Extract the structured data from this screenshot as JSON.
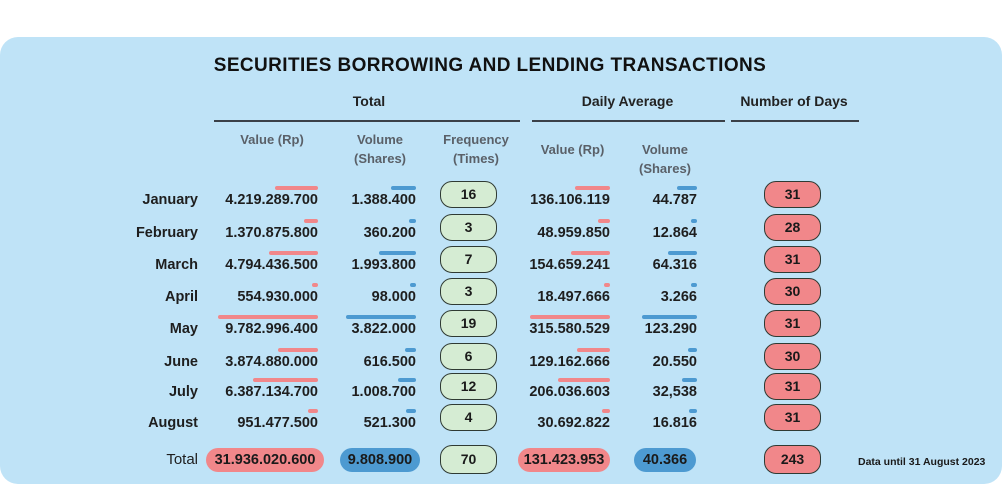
{
  "title": "SECURITIES BORROWING AND LENDING TRANSACTIONS",
  "groups": {
    "total": "Total",
    "daily": "Daily Average",
    "days": "Number of Days"
  },
  "columns": {
    "value_rp_1": "Value (Rp)",
    "volume_1": "Volume",
    "shares_1": "(Shares)",
    "frequency": "Frequency",
    "times": "(Times)",
    "value_rp_2": "Value (Rp)",
    "volume_2": "Volume",
    "shares_2": "(Shares)"
  },
  "colors": {
    "red": "#f1878a",
    "blue": "#4d9ad1",
    "green": "#d5ecd3",
    "panel": "#bfe3f7"
  },
  "chart_data": {
    "type": "table",
    "title": "SECURITIES BORROWING AND LENDING TRANSACTIONS",
    "months": [
      "January",
      "February",
      "March",
      "April",
      "May",
      "June",
      "July",
      "August"
    ],
    "total_value": [
      "4.219.289.700",
      "1.370.875.800",
      "4.794.436.500",
      "554.930.000",
      "9.782.996.400",
      "3.874.880.000",
      "6.387.134.700",
      "951.477.500"
    ],
    "total_volume": [
      "1.388.400",
      "360.200",
      "1.993.800",
      "98.000",
      "3.822.000",
      "616.500",
      "1.008.700",
      "521.300"
    ],
    "frequency": [
      "16",
      "3",
      "7",
      "3",
      "19",
      "6",
      "12",
      "4"
    ],
    "daily_value": [
      "136.106.119",
      "48.959.850",
      "154.659.241",
      "18.497.666",
      "315.580.529",
      "129.162.666",
      "206.036.603",
      "30.692.822"
    ],
    "daily_volume": [
      "44.787",
      "12.864",
      "64.316",
      "3.266",
      "123.290",
      "20.550",
      "32,538",
      "16.816"
    ],
    "days": [
      "31",
      "28",
      "31",
      "30",
      "31",
      "30",
      "31",
      "31"
    ],
    "total_value_num": [
      4219289700,
      1370875800,
      4794436500,
      554930000,
      9782996400,
      3874880000,
      6387134700,
      951477500
    ],
    "total_volume_num": [
      1388400,
      360200,
      1993800,
      98000,
      3822000,
      616500,
      1008700,
      521300
    ],
    "daily_value_num": [
      136106119,
      48959850,
      154659241,
      18497666,
      315580529,
      129162666,
      206036603,
      30692822
    ],
    "daily_volume_num": [
      44787,
      12864,
      64316,
      3266,
      123290,
      20550,
      32538,
      16816
    ],
    "totals": {
      "label": "Total",
      "total_value": "31.936.020.600",
      "total_volume": "9.808.900",
      "frequency": "70",
      "daily_value": "131.423.953",
      "daily_volume": "40.366",
      "days": "243"
    }
  },
  "note": "Data until 31 August 2023"
}
